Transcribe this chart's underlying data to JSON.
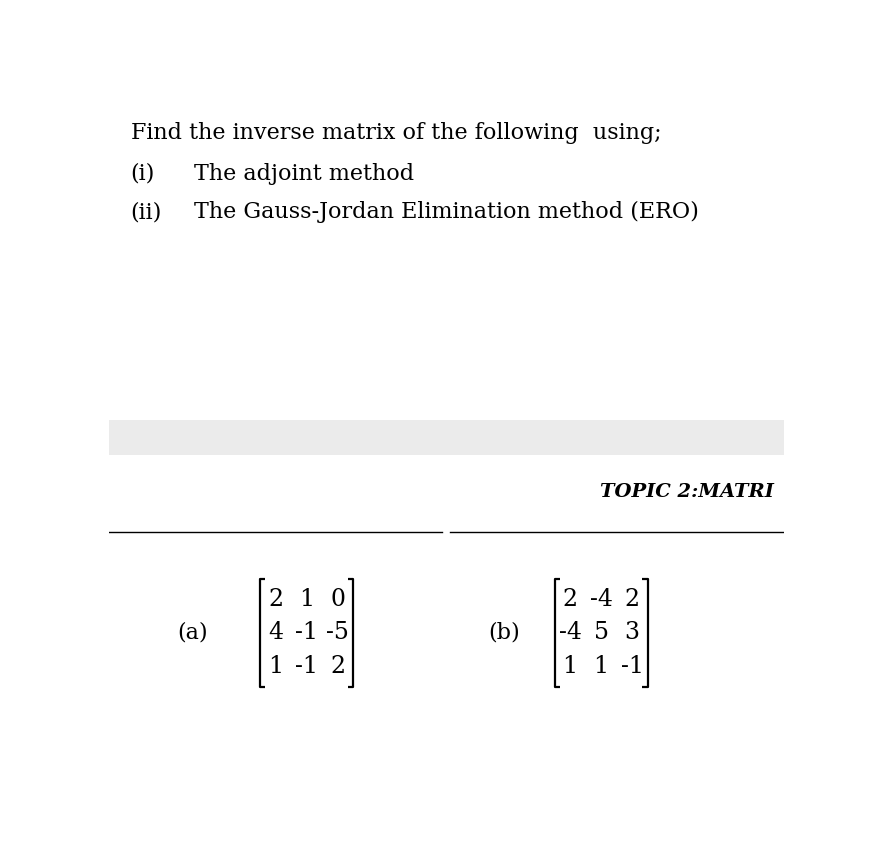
{
  "bg_color": "#ffffff",
  "gray_band_color": "#ebebeb",
  "header_text": "Find the inverse matrix of the following  using;",
  "item_i_label": "(i)",
  "item_i_text": "The adjoint method",
  "item_ii_label": "(ii)",
  "item_ii_text": "The Gauss-Jordan Elimination method (ERO)",
  "topic_label": "TOPIC 2:MATRI",
  "matrix_a_label": "(a)",
  "matrix_a": [
    [
      2,
      1,
      0
    ],
    [
      4,
      -1,
      -5
    ],
    [
      1,
      -1,
      2
    ]
  ],
  "matrix_b_label": "(b)",
  "matrix_b": [
    [
      2,
      -4,
      2
    ],
    [
      -4,
      5,
      3
    ],
    [
      1,
      1,
      -1
    ]
  ],
  "font_size_header": 16,
  "font_size_items": 16,
  "font_size_topic": 14,
  "font_size_matrix": 17,
  "font_size_label": 16
}
